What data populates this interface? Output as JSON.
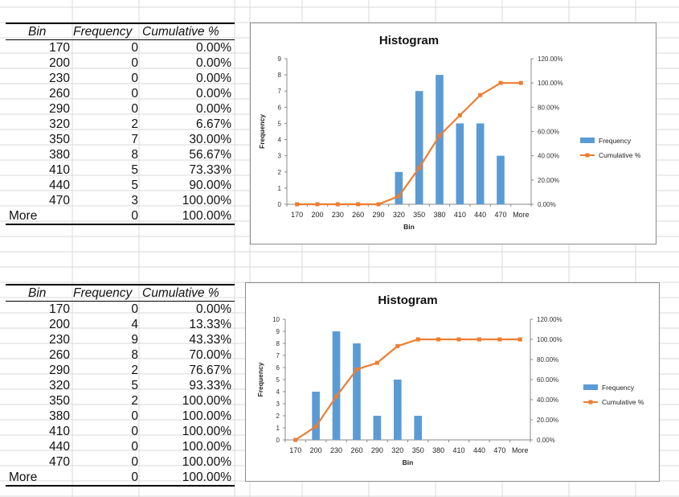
{
  "colors": {
    "frequency": "#5B9BD5",
    "cumulative": "#ED7D31",
    "grid": "#d9d9d9"
  },
  "tables": [
    {
      "headers": {
        "bin": "Bin",
        "frequency": "Frequency",
        "cumulative": "Cumulative %"
      },
      "rows": [
        {
          "bin": "170",
          "frequency": "0",
          "cumulative": "0.00%"
        },
        {
          "bin": "200",
          "frequency": "0",
          "cumulative": "0.00%"
        },
        {
          "bin": "230",
          "frequency": "0",
          "cumulative": "0.00%"
        },
        {
          "bin": "260",
          "frequency": "0",
          "cumulative": "0.00%"
        },
        {
          "bin": "290",
          "frequency": "0",
          "cumulative": "0.00%"
        },
        {
          "bin": "320",
          "frequency": "2",
          "cumulative": "6.67%"
        },
        {
          "bin": "350",
          "frequency": "7",
          "cumulative": "30.00%"
        },
        {
          "bin": "380",
          "frequency": "8",
          "cumulative": "56.67%"
        },
        {
          "bin": "410",
          "frequency": "5",
          "cumulative": "73.33%"
        },
        {
          "bin": "440",
          "frequency": "5",
          "cumulative": "90.00%"
        },
        {
          "bin": "470",
          "frequency": "3",
          "cumulative": "100.00%"
        },
        {
          "bin": "More",
          "frequency": "0",
          "cumulative": "100.00%"
        }
      ]
    },
    {
      "headers": {
        "bin": "Bin",
        "frequency": "Frequency",
        "cumulative": "Cumulative %"
      },
      "rows": [
        {
          "bin": "170",
          "frequency": "0",
          "cumulative": "0.00%"
        },
        {
          "bin": "200",
          "frequency": "4",
          "cumulative": "13.33%"
        },
        {
          "bin": "230",
          "frequency": "9",
          "cumulative": "43.33%"
        },
        {
          "bin": "260",
          "frequency": "8",
          "cumulative": "70.00%"
        },
        {
          "bin": "290",
          "frequency": "2",
          "cumulative": "76.67%"
        },
        {
          "bin": "320",
          "frequency": "5",
          "cumulative": "93.33%"
        },
        {
          "bin": "350",
          "frequency": "2",
          "cumulative": "100.00%"
        },
        {
          "bin": "380",
          "frequency": "0",
          "cumulative": "100.00%"
        },
        {
          "bin": "410",
          "frequency": "0",
          "cumulative": "100.00%"
        },
        {
          "bin": "440",
          "frequency": "0",
          "cumulative": "100.00%"
        },
        {
          "bin": "470",
          "frequency": "0",
          "cumulative": "100.00%"
        },
        {
          "bin": "More",
          "frequency": "0",
          "cumulative": "100.00%"
        }
      ]
    }
  ],
  "chart_data": [
    {
      "type": "bar",
      "title": "Histogram",
      "xlabel": "Bin",
      "ylabel": "Frequency",
      "categories": [
        "170",
        "200",
        "230",
        "260",
        "290",
        "320",
        "350",
        "380",
        "410",
        "440",
        "470",
        "More"
      ],
      "series": [
        {
          "name": "Frequency",
          "type": "bar",
          "axis": "left",
          "values": [
            0,
            0,
            0,
            0,
            0,
            2,
            7,
            8,
            5,
            5,
            3,
            0
          ]
        },
        {
          "name": "Cumulative %",
          "type": "line",
          "axis": "right",
          "values": [
            0,
            0,
            0,
            0,
            0,
            6.67,
            30,
            56.67,
            73.33,
            90,
            100,
            100
          ]
        }
      ],
      "ylim": [
        0,
        9
      ],
      "yticks": [
        "0",
        "1",
        "2",
        "3",
        "4",
        "5",
        "6",
        "7",
        "8",
        "9"
      ],
      "y2lim": [
        0,
        120
      ],
      "y2ticks": [
        "0.00%",
        "20.00%",
        "40.00%",
        "60.00%",
        "80.00%",
        "100.00%",
        "120.00%"
      ],
      "legend": "right",
      "grid": false
    },
    {
      "type": "bar",
      "title": "Histogram",
      "xlabel": "Bin",
      "ylabel": "Frequency",
      "categories": [
        "170",
        "200",
        "230",
        "260",
        "290",
        "320",
        "350",
        "380",
        "410",
        "440",
        "470",
        "More"
      ],
      "series": [
        {
          "name": "Frequency",
          "type": "bar",
          "axis": "left",
          "values": [
            0,
            4,
            9,
            8,
            2,
            5,
            2,
            0,
            0,
            0,
            0,
            0
          ]
        },
        {
          "name": "Cumulative %",
          "type": "line",
          "axis": "right",
          "values": [
            0,
            13.33,
            43.33,
            70,
            76.67,
            93.33,
            100,
            100,
            100,
            100,
            100,
            100
          ]
        }
      ],
      "ylim": [
        0,
        10
      ],
      "yticks": [
        "0",
        "1",
        "2",
        "3",
        "4",
        "5",
        "6",
        "7",
        "8",
        "9",
        "10"
      ],
      "y2lim": [
        0,
        120
      ],
      "y2ticks": [
        "0.00%",
        "20.00%",
        "40.00%",
        "60.00%",
        "80.00%",
        "100.00%",
        "120.00%"
      ],
      "legend": "right",
      "grid": false
    }
  ]
}
